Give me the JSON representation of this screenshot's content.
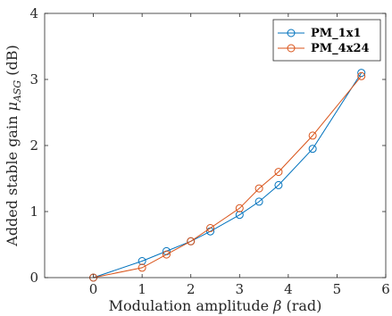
{
  "chart_data": {
    "type": "line",
    "xlabel": "Modulation amplitude β (rad)",
    "ylabel": "Added stable gain μASG (dB)",
    "xlim": [
      -1,
      6
    ],
    "ylim": [
      0,
      4
    ],
    "x_ticks": [
      "0",
      "1",
      "2",
      "3",
      "4",
      "5",
      "6"
    ],
    "y_ticks": [
      "0",
      "1",
      "2",
      "3",
      "4"
    ],
    "grid": false,
    "legend_position": "top-right",
    "markers": "open-circle",
    "series": [
      {
        "name": "PM_1x1",
        "color": "#0072BD",
        "x": [
          0,
          1,
          1.5,
          2,
          2.4,
          3,
          3.4,
          3.8,
          4.5,
          5.5
        ],
        "y": [
          0,
          0.25,
          0.4,
          0.55,
          0.7,
          0.95,
          1.15,
          1.4,
          1.95,
          3.1
        ]
      },
      {
        "name": "PM_4x24",
        "color": "#D95319",
        "x": [
          0,
          1,
          1.5,
          2,
          2.4,
          3,
          3.4,
          3.8,
          4.5,
          5.5
        ],
        "y": [
          0,
          0.15,
          0.35,
          0.55,
          0.75,
          1.05,
          1.35,
          1.6,
          2.15,
          3.05
        ]
      }
    ]
  }
}
